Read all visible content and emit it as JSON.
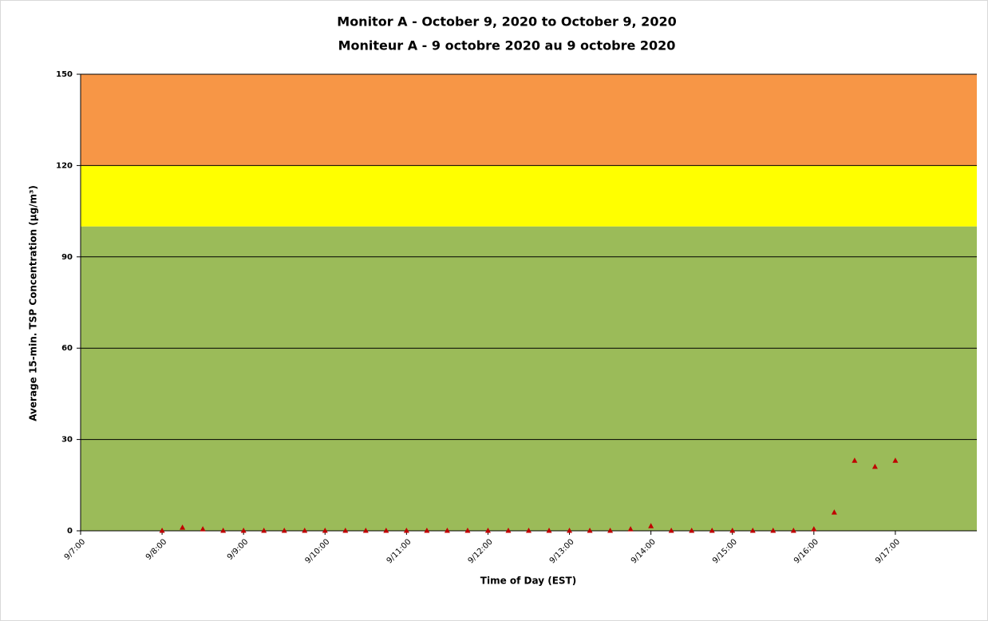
{
  "chart_data": {
    "type": "scatter",
    "title": "Monitor A - October 9, 2020 to October 9, 2020",
    "subtitle": "Moniteur A - 9 octobre 2020 au 9 octobre 2020",
    "x_label": "Time of Day (EST)",
    "y_label": "Average 15-min. TSP Concentration (µg/m³)",
    "x": [
      8,
      8.25,
      8.5,
      8.75,
      9,
      9.25,
      9.5,
      9.75,
      10,
      10.25,
      10.5,
      10.75,
      11,
      11.25,
      11.5,
      11.75,
      12,
      12.25,
      12.5,
      12.75,
      13,
      13.25,
      13.5,
      13.75,
      14,
      14.25,
      14.5,
      14.75,
      15,
      15.25,
      15.5,
      15.75,
      16,
      16.25,
      16.5,
      16.75,
      17
    ],
    "values": [
      0,
      1,
      0.5,
      0,
      0,
      0,
      0,
      0,
      0,
      0,
      0,
      0,
      0,
      0,
      0,
      0,
      0,
      0,
      0,
      0,
      0,
      0,
      0,
      0.5,
      1.5,
      0,
      0,
      0,
      0,
      0,
      0,
      0,
      0.5,
      6,
      23,
      21,
      23
    ],
    "color": "#c00000",
    "bands": [
      {
        "from": 0,
        "to": 100,
        "color": "#9bbb59"
      },
      {
        "from": 100,
        "to": 120,
        "color": "#ffff00"
      },
      {
        "from": 120,
        "to": 150,
        "color": "#f79646"
      }
    ],
    "xlim": [
      7,
      18
    ],
    "xticks": [
      {
        "value": 7,
        "label": "9/7:00"
      },
      {
        "value": 8,
        "label": "9/8:00"
      },
      {
        "value": 9,
        "label": "9/9:00"
      },
      {
        "value": 10,
        "label": "9/10:00"
      },
      {
        "value": 11,
        "label": "9/11:00"
      },
      {
        "value": 12,
        "label": "9/12:00"
      },
      {
        "value": 13,
        "label": "9/13:00"
      },
      {
        "value": 14,
        "label": "9/14:00"
      },
      {
        "value": 15,
        "label": "9/15:00"
      },
      {
        "value": 16,
        "label": "9/16:00"
      },
      {
        "value": 17,
        "label": "9/17:00"
      }
    ],
    "ylim": [
      0,
      150
    ],
    "yticks": [
      0,
      30,
      60,
      90,
      120,
      150
    ],
    "grid": true
  }
}
